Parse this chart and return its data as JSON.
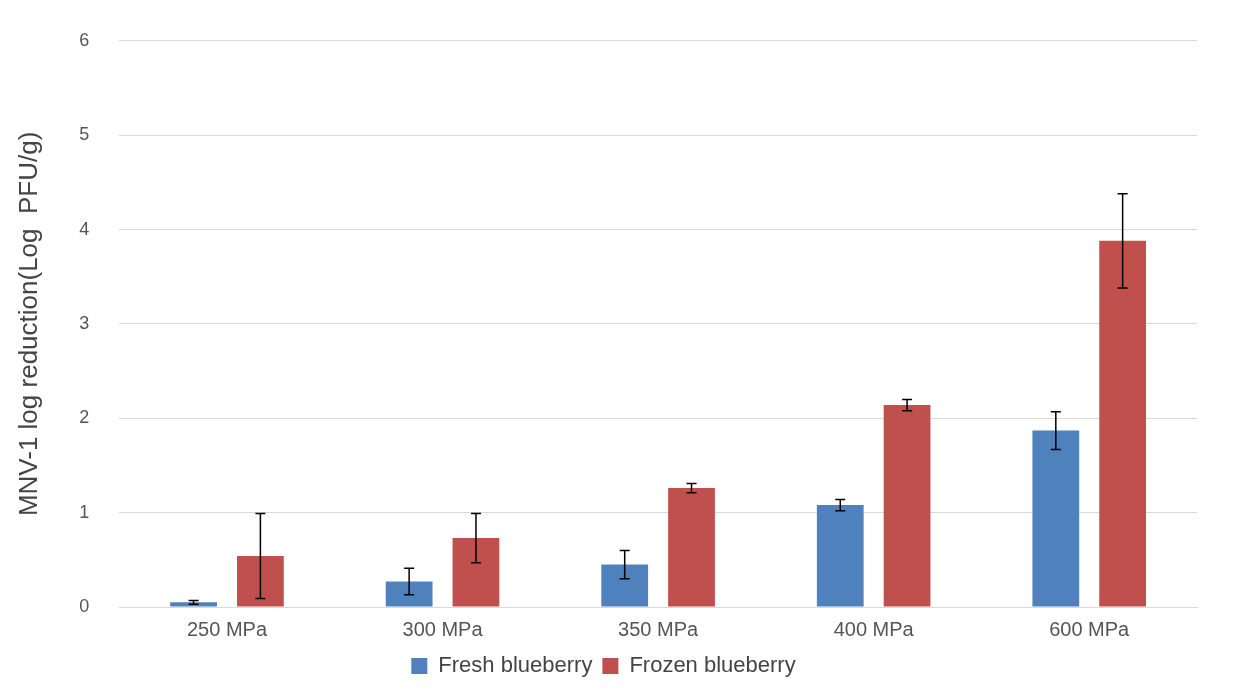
{
  "chart_data": {
    "type": "bar",
    "ylabel": "MNV-1 log reduction(Log  PFU/g)",
    "categories": [
      "250 MPa",
      "300 MPa",
      "350 MPa",
      "400 MPa",
      "600 MPa"
    ],
    "series": [
      {
        "name": "Fresh blueberry",
        "color": "#4f81bd",
        "values": [
          0.05,
          0.27,
          0.45,
          1.08,
          1.87
        ],
        "errors": [
          0.02,
          0.14,
          0.15,
          0.06,
          0.2
        ]
      },
      {
        "name": "Frozen blueberry",
        "color": "#c0504d",
        "values": [
          0.54,
          0.73,
          1.26,
          2.14,
          3.88
        ],
        "errors": [
          0.45,
          0.26,
          0.05,
          0.06,
          0.5
        ]
      }
    ],
    "ylim": [
      0,
      6
    ],
    "yticks": [
      0,
      1,
      2,
      3,
      4,
      5,
      6
    ],
    "grid": "y",
    "legend": "bottom"
  }
}
